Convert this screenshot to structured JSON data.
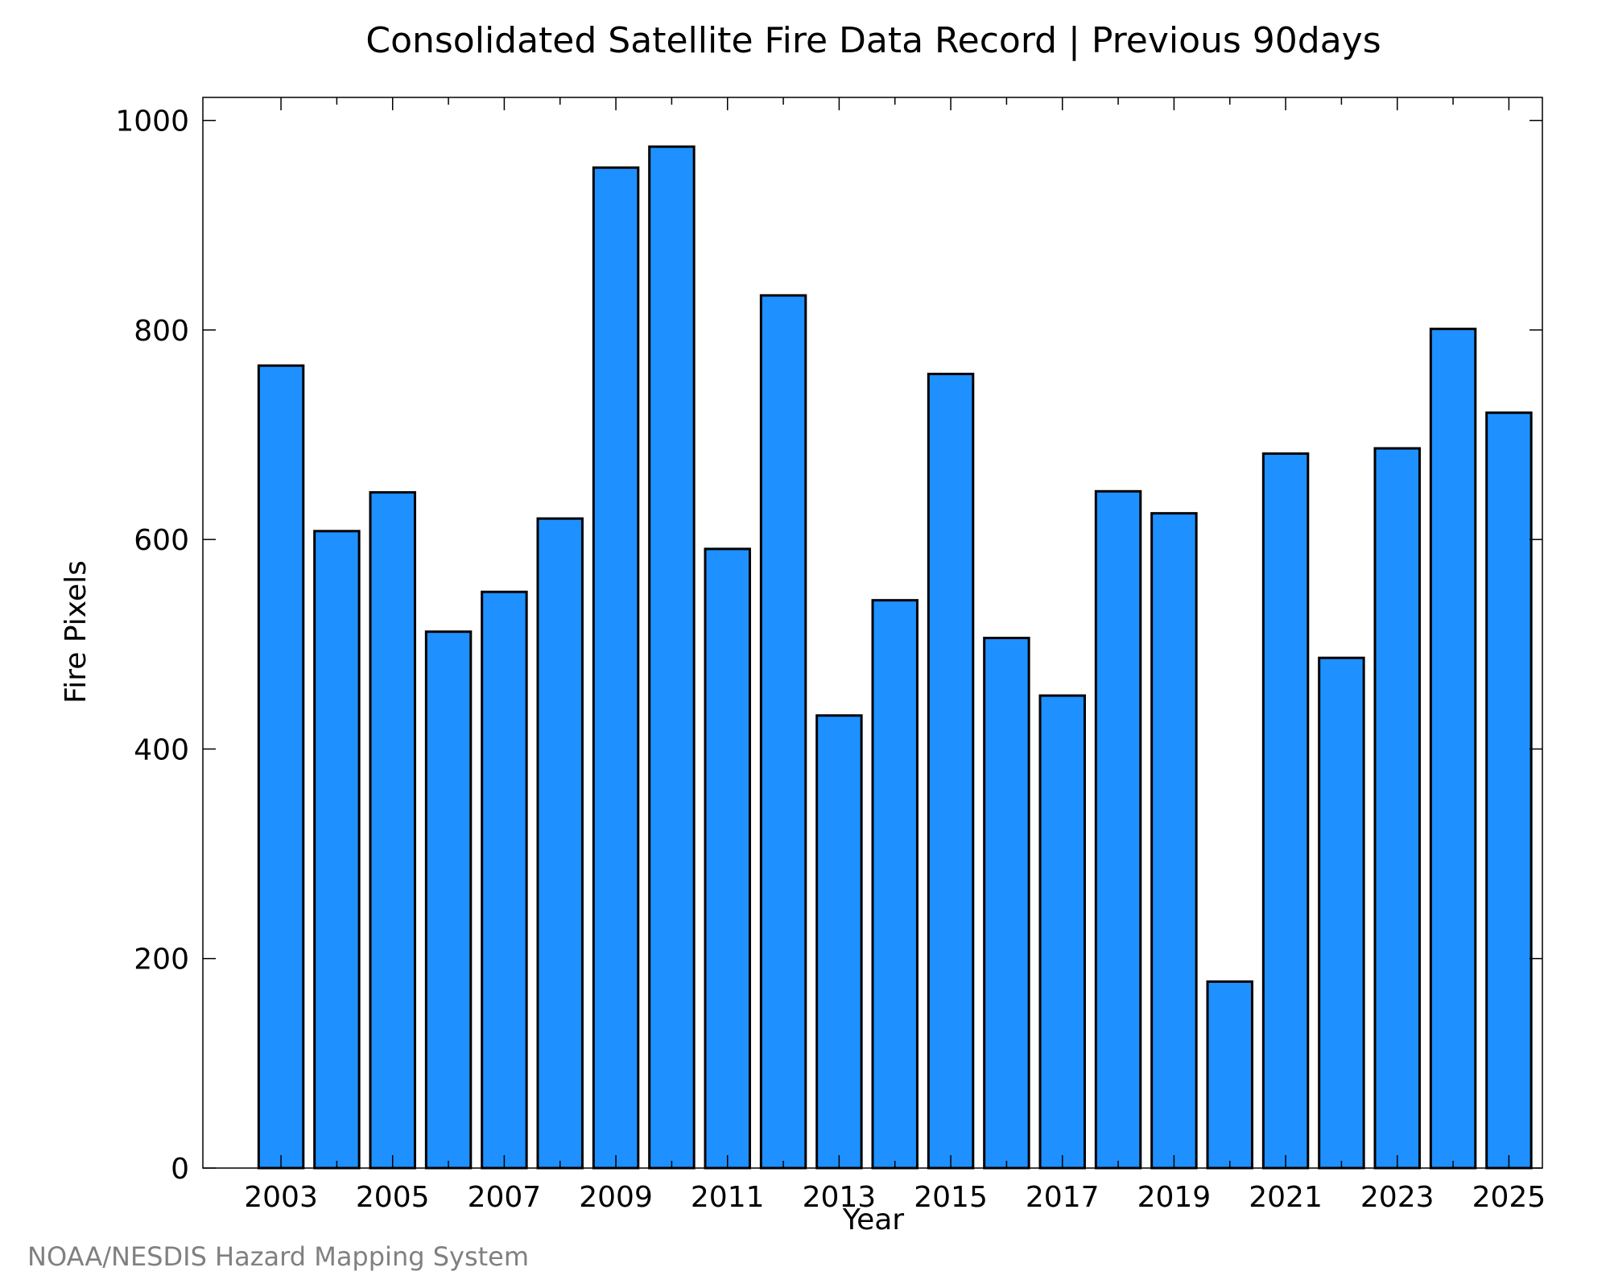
{
  "chart_data": {
    "type": "bar",
    "title": "Consolidated Satellite Fire Data Record | Previous 90days",
    "xlabel": "Year",
    "ylabel": "Fire Pixels",
    "source": "NOAA/NESDIS Hazard Mapping System",
    "categories": [
      2003,
      2004,
      2005,
      2006,
      2007,
      2008,
      2009,
      2010,
      2011,
      2012,
      2013,
      2014,
      2015,
      2016,
      2017,
      2018,
      2019,
      2020,
      2021,
      2022,
      2023,
      2024,
      2025
    ],
    "values": [
      766,
      608,
      645,
      512,
      550,
      620,
      955,
      975,
      591,
      833,
      432,
      542,
      758,
      506,
      451,
      646,
      625,
      178,
      682,
      487,
      687,
      801,
      721
    ],
    "ylim": [
      0,
      1022
    ],
    "xlim": [
      2001.6,
      2025.6
    ],
    "x_ticks": [
      2003,
      2005,
      2007,
      2009,
      2011,
      2013,
      2015,
      2017,
      2019,
      2021,
      2023,
      2025
    ],
    "x_minor_ticks": [
      2004,
      2006,
      2008,
      2010,
      2012,
      2014,
      2016,
      2018,
      2020,
      2022,
      2024
    ],
    "y_ticks": [
      0,
      200,
      400,
      600,
      800,
      1000
    ],
    "bar_color": "#1e90ff",
    "edge_color": "#000000",
    "grid": false
  }
}
